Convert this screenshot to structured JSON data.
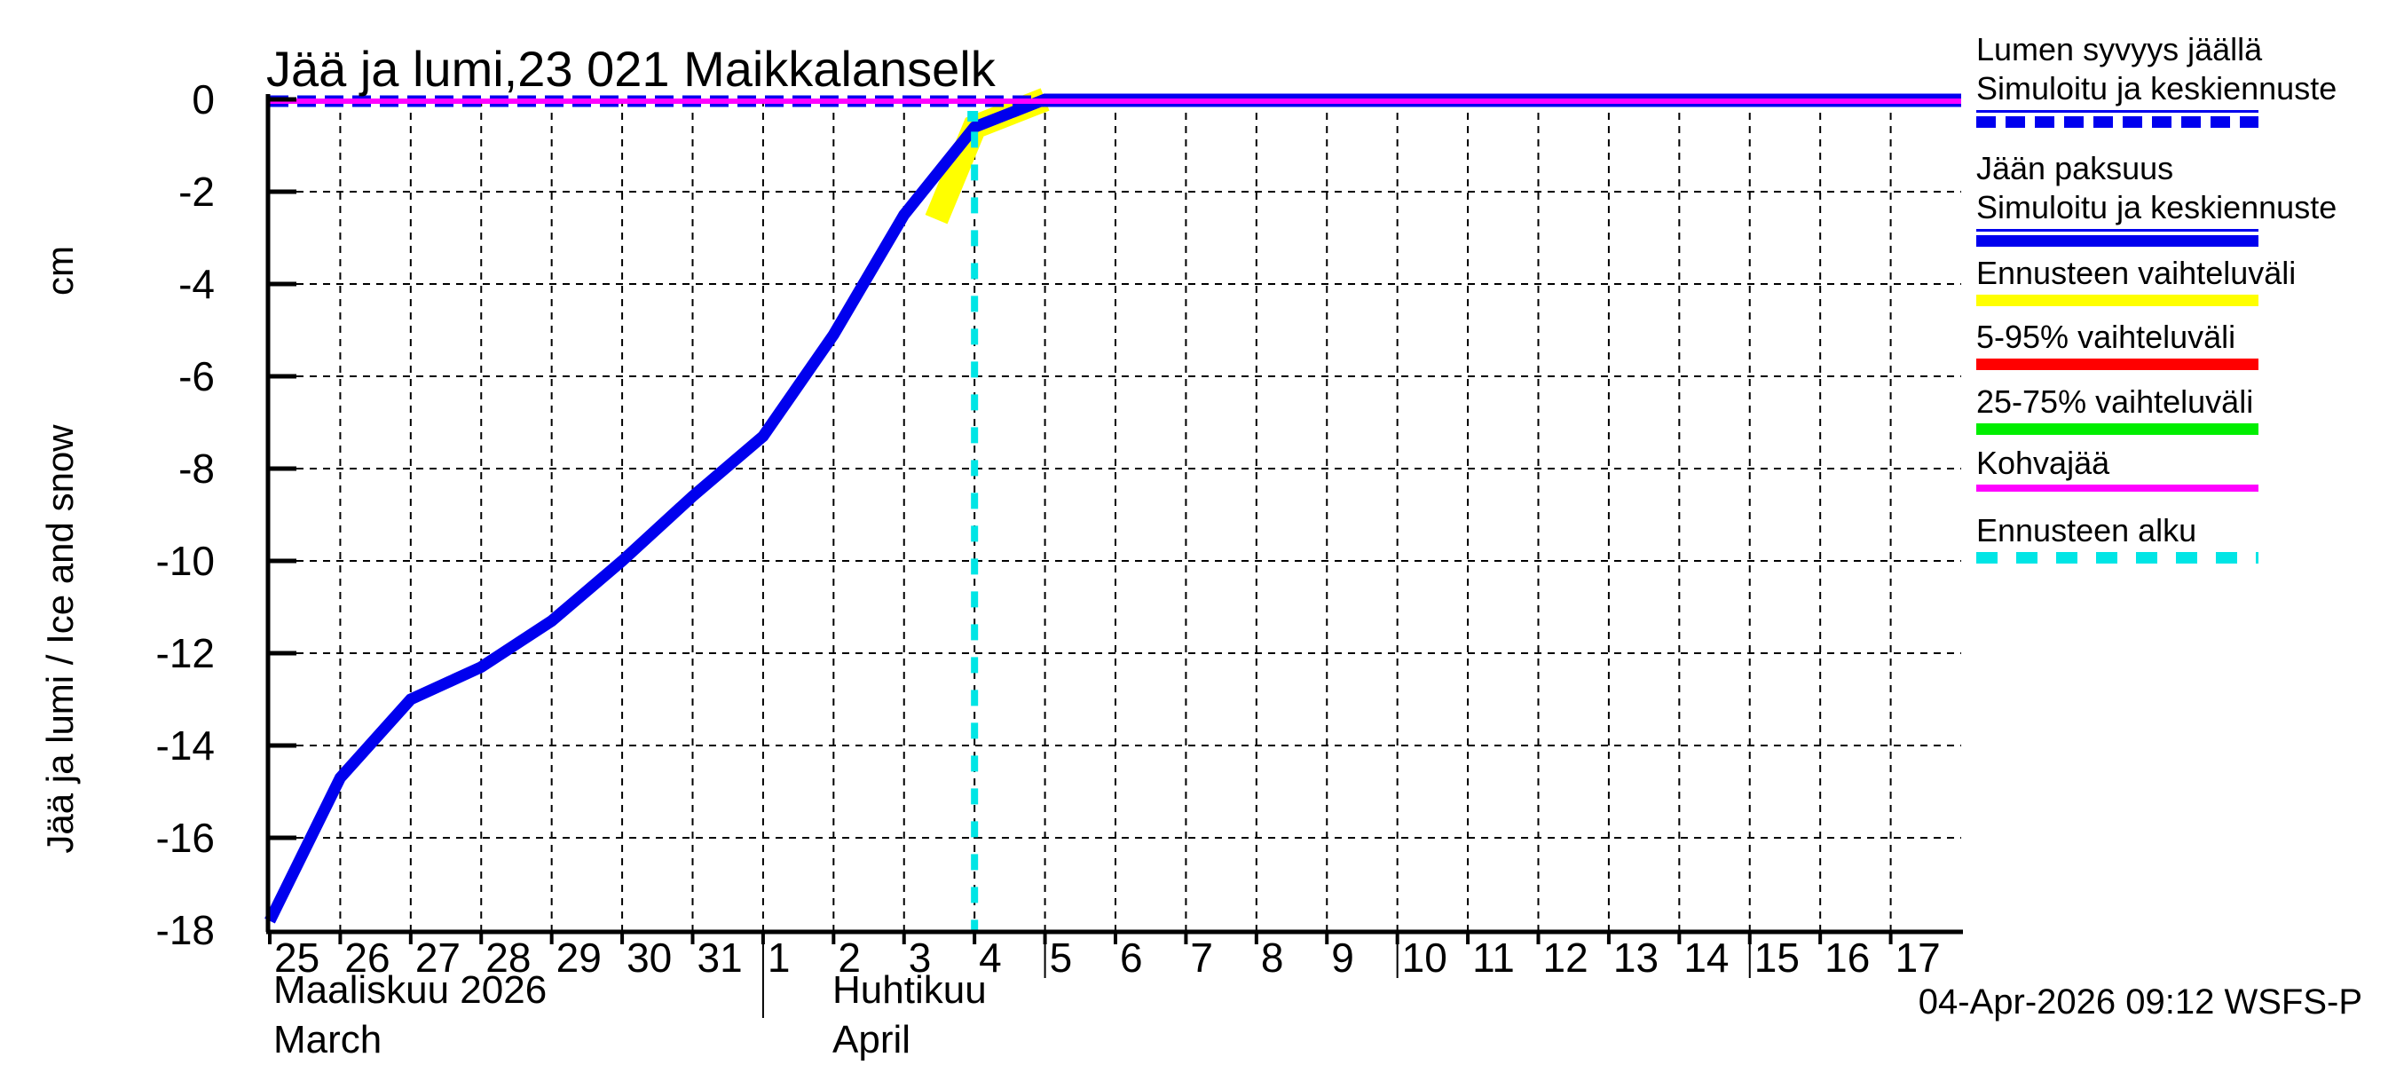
{
  "title": "Jää ja lumi,23 021 Maikkalanselk",
  "y_axis": {
    "label": "Jää ja lumi / Ice and snow",
    "unit": "cm",
    "tick_labels": [
      "0",
      "-2",
      "-4",
      "-6",
      "-8",
      "-10",
      "-12",
      "-14",
      "-16",
      "-18"
    ]
  },
  "x_axis": {
    "march": {
      "name_fi": "Maaliskuu 2026",
      "name_en": "March",
      "days": [
        "25",
        "26",
        "27",
        "28",
        "29",
        "30",
        "31"
      ]
    },
    "april": {
      "name_fi": "Huhtikuu",
      "name_en": "April",
      "days": [
        "1",
        "2",
        "3",
        "4",
        "5",
        "6",
        "7",
        "8",
        "9",
        "10",
        "11",
        "12",
        "13",
        "14",
        "15",
        "16",
        "17"
      ]
    }
  },
  "footer": {
    "generated": "04-Apr-2026 09:12 WSFS-P"
  },
  "colors": {
    "blue": "#0000EE",
    "magenta": "#FF00FF",
    "yellow": "#FFFF00",
    "red": "#FF0000",
    "green": "#00EE00",
    "cyan": "#00E5E5",
    "grid": "#000000"
  },
  "legend": [
    {
      "lines": [
        "Lumen syvyys jäällä",
        "Simuloitu ja keskiennuste"
      ],
      "color": "#0000EE",
      "style": "dashed",
      "thin_leader": true
    },
    {
      "lines": [
        "Jään paksuus",
        "Simuloitu ja keskiennuste"
      ],
      "color": "#0000EE",
      "style": "solid",
      "thin_leader": true
    },
    {
      "lines": [
        "Ennusteen vaihteluväli"
      ],
      "color": "#FFFF00",
      "style": "solid",
      "thin_leader": false
    },
    {
      "lines": [
        "5-95% vaihteluväli"
      ],
      "color": "#FF0000",
      "style": "solid",
      "thin_leader": false
    },
    {
      "lines": [
        "25-75% vaihteluväli"
      ],
      "color": "#00EE00",
      "style": "solid",
      "thin_leader": false
    },
    {
      "lines": [
        "Kohvajää"
      ],
      "color": "#FF00FF",
      "style": "solid-thin",
      "thin_leader": false
    },
    {
      "lines": [
        "Ennusteen alku"
      ],
      "color": "#00E5E5",
      "style": "dashed-sparse",
      "thin_leader": false
    }
  ],
  "chart_data": {
    "type": "line",
    "title": "Jää ja lumi,23 021 Maikkalanselk",
    "station": "23 021 Maikkalanselk",
    "ylabel": "Jää ja lumi / Ice and snow (cm)",
    "ylim": [
      -18,
      0
    ],
    "x_range": [
      "2026-03-25",
      "2026-04-18"
    ],
    "x_tick_interval_days": 1,
    "grid": true,
    "legend_position": "right",
    "forecast_start": "2026-04-04",
    "series": [
      {
        "name": "Jään paksuus - Simuloitu ja keskiennuste",
        "color": "#0000EE",
        "style": "solid",
        "width": 13,
        "points": [
          [
            "2026-03-25",
            -17.8
          ],
          [
            "2026-03-26",
            -14.7
          ],
          [
            "2026-03-27",
            -13.0
          ],
          [
            "2026-03-28",
            -12.3
          ],
          [
            "2026-03-29",
            -11.3
          ],
          [
            "2026-03-30",
            -10.0
          ],
          [
            "2026-03-31",
            -8.6
          ],
          [
            "2026-04-01",
            -7.3
          ],
          [
            "2026-04-02",
            -5.1
          ],
          [
            "2026-04-03",
            -2.5
          ],
          [
            "2026-04-04",
            -0.6
          ],
          [
            "2026-04-05",
            0.0
          ],
          [
            "2026-04-18",
            0.0
          ]
        ]
      },
      {
        "name": "Lumen syvyys jäällä - Simuloitu ja keskiennuste",
        "color": "#0000EE",
        "style": "dashed",
        "width": 13,
        "points": [
          [
            "2026-03-25",
            0.0
          ],
          [
            "2026-04-18",
            0.0
          ]
        ]
      },
      {
        "name": "Kohvajää",
        "color": "#FF00FF",
        "style": "solid",
        "width": 6,
        "points": [
          [
            "2026-03-25",
            0.0
          ],
          [
            "2026-04-18",
            0.0
          ]
        ]
      },
      {
        "name": "Ennusteen vaihteluväli",
        "color": "#FFFF00",
        "style": "band",
        "width": 27,
        "points": [
          [
            "2026-04-03T11",
            -2.6
          ],
          [
            "2026-04-04",
            -0.6
          ],
          [
            "2026-04-05",
            0.0
          ]
        ]
      },
      {
        "name": "Ennusteen alku",
        "color": "#00E5E5",
        "style": "dashed-vertical",
        "points": [
          [
            "2026-04-04",
            -0.7
          ],
          [
            "2026-04-04",
            -18.0
          ]
        ]
      }
    ]
  }
}
